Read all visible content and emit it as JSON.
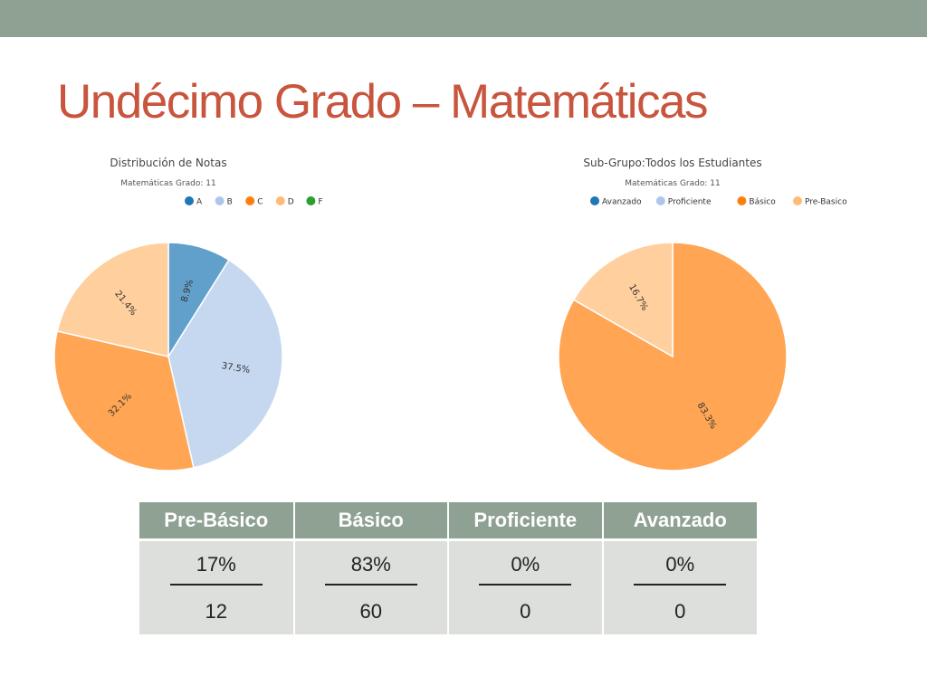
{
  "slide": {
    "title": "Undécimo Grado – Matemáticas",
    "colors": {
      "topbar": "#8fa193",
      "title": "#c8553d",
      "table_header": "#8fa193",
      "table_cell": "#dcdfdb"
    }
  },
  "chart_data": [
    {
      "type": "pie",
      "title": "Distribución de Notas",
      "subtitle": "Matemáticas Grado: 11",
      "legend": [
        "A",
        "B",
        "C",
        "D",
        "F"
      ],
      "legend_colors": [
        "#1f77b4",
        "#aec7e8",
        "#ff7f0e",
        "#ffbb78",
        "#2ca02c"
      ],
      "legend_position": "top",
      "slices": [
        {
          "name": "A",
          "value": 8.9,
          "label": "8.9%",
          "color": "#62a0cc"
        },
        {
          "name": "B",
          "value": 37.5,
          "label": "37.5%",
          "color": "#c6d8f0"
        },
        {
          "name": "C",
          "value": 32.1,
          "label": "32.1%",
          "color": "#ffa554"
        },
        {
          "name": "D",
          "value": 21.4,
          "label": "21.4%",
          "color": "#ffcf9e"
        }
      ]
    },
    {
      "type": "pie",
      "title": "Sub-Grupo:Todos los Estudiantes",
      "subtitle": "Matemáticas Grado: 11",
      "legend": [
        "Avanzado",
        "Proficiente",
        "Básico",
        "Pre-Basico"
      ],
      "legend_colors": [
        "#1f77b4",
        "#aec7e8",
        "#ff7f0e",
        "#ffbb78"
      ],
      "legend_position": "top",
      "slices": [
        {
          "name": "Básico",
          "value": 83.3,
          "label": "83.3%",
          "color": "#ffa554"
        },
        {
          "name": "Pre-Basico",
          "value": 16.7,
          "label": "16.7%",
          "color": "#ffcf9e"
        }
      ]
    }
  ],
  "table": {
    "headers": [
      "Pre-Básico",
      "Básico",
      "Proficiente",
      "Avanzado"
    ],
    "percents": [
      "17%",
      "83%",
      "0%",
      "0%"
    ],
    "counts": [
      "12",
      "60",
      "0",
      "0"
    ]
  }
}
